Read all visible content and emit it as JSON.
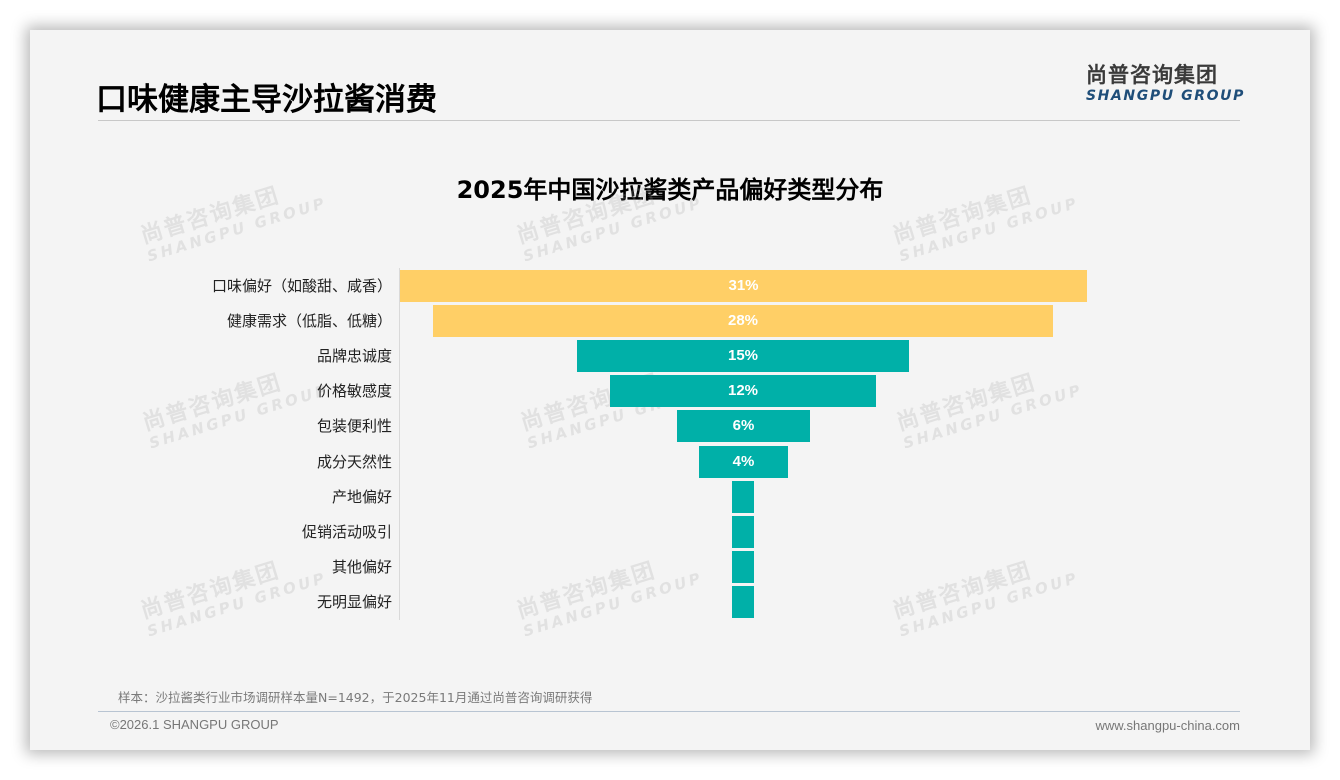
{
  "header": {
    "title": "口味健康主导沙拉酱消费",
    "logo_cn": "尚普咨询集团",
    "logo_en": "SHANGPU GROUP"
  },
  "watermark": {
    "cn": "尚普咨询集团",
    "en": "SHANGPU GROUP"
  },
  "colors": {
    "top_bars": "#FFCF66",
    "other_bars": "#00B0A8",
    "background": "#F4F4F4"
  },
  "chart_data": {
    "type": "bar",
    "orientation": "horizontal-centered-funnel",
    "title": "2025年中国沙拉酱类产品偏好类型分布",
    "xlabel": "",
    "ylabel": "",
    "grid": false,
    "legend": null,
    "categories": [
      "口味偏好（如酸甜、咸香）",
      "健康需求（低脂、低糖）",
      "品牌忠诚度",
      "价格敏感度",
      "包装便利性",
      "成分天然性",
      "产地偏好",
      "促销活动吸引",
      "其他偏好",
      "无明显偏好"
    ],
    "values": [
      31,
      28,
      15,
      12,
      6,
      4,
      1,
      1,
      1,
      1
    ],
    "value_labels": [
      "31%",
      "28%",
      "15%",
      "12%",
      "6%",
      "4%",
      "",
      "",
      "",
      ""
    ],
    "unit": "%",
    "highlight_colors": [
      "#FFCF66",
      "#FFCF66",
      "#00B0A8",
      "#00B0A8",
      "#00B0A8",
      "#00B0A8",
      "#00B0A8",
      "#00B0A8",
      "#00B0A8",
      "#00B0A8"
    ]
  },
  "footer": {
    "note": "样本：沙拉酱类行业市场调研样本量N=1492，于2025年11月通过尚普咨询调研获得",
    "copyright": "©2026.1 SHANGPU GROUP",
    "website": "www.shangpu-china.com"
  }
}
